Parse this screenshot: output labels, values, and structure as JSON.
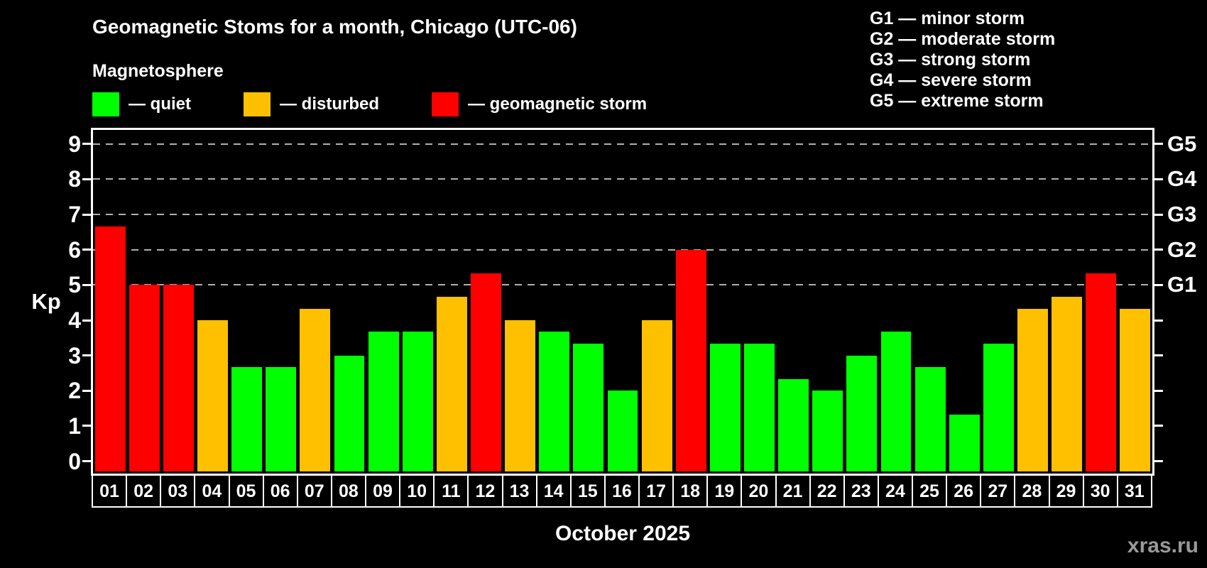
{
  "header": {
    "title": "Geomagnetic Stoms for a month, Chicago (UTC-06)",
    "subtitle": "Magnetosphere"
  },
  "legend": {
    "items": [
      {
        "status": "quiet",
        "label": "— quiet",
        "color": "#00ff00"
      },
      {
        "status": "disturbed",
        "label": "— disturbed",
        "color": "#ffc000"
      },
      {
        "status": "storm",
        "label": "— geomagnetic storm",
        "color": "#ff0000"
      }
    ]
  },
  "g_legend": {
    "separator": "—",
    "items": [
      {
        "code": "G1",
        "desc": "minor storm"
      },
      {
        "code": "G2",
        "desc": "moderate storm"
      },
      {
        "code": "G3",
        "desc": "strong storm"
      },
      {
        "code": "G4",
        "desc": "severe storm"
      },
      {
        "code": "G5",
        "desc": "extreme storm"
      }
    ]
  },
  "chart_data": {
    "type": "bar",
    "title": "Geomagnetic Stoms for a month, Chicago (UTC-06)",
    "xlabel": "October 2025",
    "ylabel": "Kp",
    "ylim": [
      -0.35,
      9.4
    ],
    "grid": "dashed horizontal at storm levels only",
    "legend_position": "top-left",
    "categories": [
      "01",
      "02",
      "03",
      "04",
      "05",
      "06",
      "07",
      "08",
      "09",
      "10",
      "11",
      "12",
      "13",
      "14",
      "15",
      "16",
      "17",
      "18",
      "19",
      "20",
      "21",
      "22",
      "23",
      "24",
      "25",
      "26",
      "27",
      "28",
      "29",
      "30",
      "31"
    ],
    "values": [
      6.67,
      5.0,
      5.0,
      4.0,
      2.67,
      2.67,
      4.33,
      3.0,
      3.67,
      3.67,
      4.67,
      5.33,
      4.0,
      3.67,
      3.33,
      2.0,
      4.0,
      6.0,
      3.33,
      3.33,
      2.33,
      2.0,
      3.0,
      3.67,
      2.67,
      1.33,
      3.33,
      4.33,
      4.67,
      5.33,
      4.33
    ],
    "statuses": [
      "storm",
      "storm",
      "storm",
      "disturbed",
      "quiet",
      "quiet",
      "disturbed",
      "quiet",
      "quiet",
      "quiet",
      "disturbed",
      "storm",
      "disturbed",
      "quiet",
      "quiet",
      "quiet",
      "disturbed",
      "storm",
      "quiet",
      "quiet",
      "quiet",
      "quiet",
      "quiet",
      "quiet",
      "quiet",
      "quiet",
      "quiet",
      "disturbed",
      "disturbed",
      "storm",
      "disturbed"
    ],
    "status_colors": {
      "quiet": "#00ff00",
      "disturbed": "#ffc000",
      "storm": "#ff0000"
    },
    "y_ticks": [
      0,
      1,
      2,
      3,
      4,
      5,
      6,
      7,
      8,
      9
    ],
    "gridlines_at": [
      5,
      6,
      7,
      8,
      9
    ],
    "right_axis_labels": {
      "5": "G1",
      "6": "G2",
      "7": "G3",
      "8": "G4",
      "9": "G5"
    }
  },
  "footer": {
    "month_label": "October 2025",
    "watermark": "xras.ru"
  },
  "colors": {
    "background": "#000000",
    "axis": "#ffffff",
    "gridline": "#b0b0b0",
    "watermark_gray": "#9a9a9a"
  }
}
